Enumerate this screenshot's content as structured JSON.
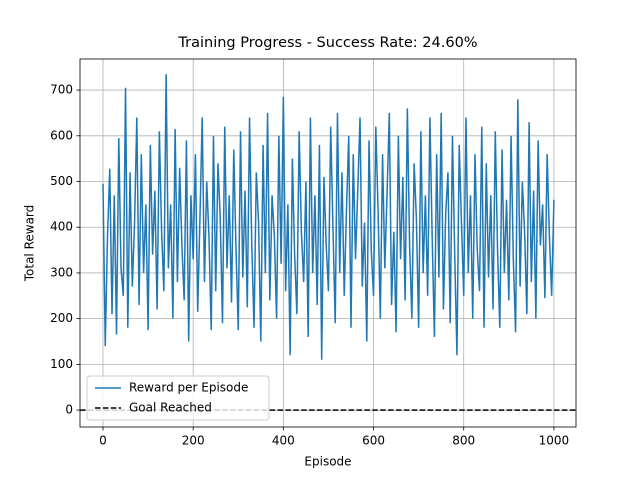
{
  "chart_data": {
    "type": "line",
    "title": "Training Progress - Success Rate: 24.60%",
    "xlabel": "Episode",
    "ylabel": "Total Reward",
    "xlim": [
      -51,
      1049
    ],
    "ylim": [
      -37,
      768
    ],
    "xticks": [
      0,
      200,
      400,
      600,
      800,
      1000
    ],
    "yticks": [
      0,
      100,
      200,
      300,
      400,
      500,
      600,
      700
    ],
    "grid": true,
    "legend": "lower left",
    "series": [
      {
        "name": "Reward per Episode",
        "color": "#1f77b4",
        "style": "solid",
        "x": [
          0,
          5,
          10,
          15,
          20,
          25,
          30,
          35,
          40,
          45,
          50,
          55,
          60,
          65,
          70,
          75,
          80,
          85,
          90,
          95,
          100,
          105,
          110,
          115,
          120,
          125,
          130,
          135,
          140,
          145,
          150,
          155,
          160,
          165,
          170,
          175,
          180,
          185,
          190,
          195,
          200,
          205,
          210,
          215,
          220,
          225,
          230,
          235,
          240,
          245,
          250,
          255,
          260,
          265,
          270,
          275,
          280,
          285,
          290,
          295,
          300,
          305,
          310,
          315,
          320,
          325,
          330,
          335,
          340,
          345,
          350,
          355,
          360,
          365,
          370,
          375,
          380,
          385,
          390,
          395,
          400,
          405,
          410,
          415,
          420,
          425,
          430,
          435,
          440,
          445,
          450,
          455,
          460,
          465,
          470,
          475,
          480,
          485,
          490,
          495,
          500,
          505,
          510,
          515,
          520,
          525,
          530,
          535,
          540,
          545,
          550,
          555,
          560,
          565,
          570,
          575,
          580,
          585,
          590,
          595,
          600,
          605,
          610,
          615,
          620,
          625,
          630,
          635,
          640,
          645,
          650,
          655,
          660,
          665,
          670,
          675,
          680,
          685,
          690,
          695,
          700,
          705,
          710,
          715,
          720,
          725,
          730,
          735,
          740,
          745,
          750,
          755,
          760,
          765,
          770,
          775,
          780,
          785,
          790,
          795,
          800,
          805,
          810,
          815,
          820,
          825,
          830,
          835,
          840,
          845,
          850,
          855,
          860,
          865,
          870,
          875,
          880,
          885,
          890,
          895,
          900,
          905,
          910,
          915,
          920,
          925,
          930,
          935,
          940,
          945,
          950,
          955,
          960,
          965,
          970,
          975,
          980,
          985,
          990,
          995,
          1000
        ],
        "values": [
          495,
          140,
          380,
          528,
          210,
          470,
          165,
          595,
          310,
          250,
          705,
          180,
          520,
          270,
          410,
          640,
          230,
          560,
          300,
          450,
          175,
          580,
          340,
          480,
          220,
          610,
          390,
          260,
          735,
          310,
          450,
          200,
          615,
          280,
          530,
          360,
          240,
          590,
          150,
          470,
          330,
          560,
          215,
          420,
          640,
          280,
          500,
          380,
          175,
          600,
          260,
          540,
          420,
          190,
          620,
          310,
          470,
          235,
          570,
          350,
          175,
          610,
          290,
          480,
          225,
          640,
          360,
          180,
          520,
          410,
          150,
          580,
          300,
          650,
          240,
          470,
          380,
          200,
          600,
          320,
          685,
          260,
          450,
          120,
          550,
          340,
          210,
          610,
          390,
          280,
          500,
          160,
          640,
          300,
          470,
          230,
          580,
          110,
          510,
          360,
          260,
          620,
          400,
          190,
          650,
          300,
          520,
          250,
          440,
          600,
          180,
          560,
          330,
          480,
          640,
          270,
          410,
          150,
          590,
          350,
          250,
          620,
          440,
          200,
          560,
          310,
          475,
          650,
          230,
          390,
          170,
          600,
          330,
          510,
          240,
          660,
          360,
          200,
          540,
          420,
          180,
          610,
          300,
          470,
          250,
          640,
          380,
          160,
          560,
          290,
          650,
          220,
          430,
          520,
          190,
          600,
          340,
          120,
          580,
          410,
          250,
          640,
          300,
          470,
          200,
          560,
          350,
          260,
          620,
          180,
          540,
          290,
          470,
          220,
          610,
          350,
          180,
          570,
          300,
          460,
          240,
          600,
          330,
          170,
          680,
          270,
          500,
          390,
          210,
          630,
          280,
          480,
          200,
          590,
          360,
          450,
          245,
          560,
          380,
          250,
          460
        ]
      },
      {
        "name": "Goal Reached",
        "color": "#000000",
        "style": "dashed",
        "x": [
          -51,
          1049
        ],
        "values": [
          0,
          0
        ]
      }
    ]
  }
}
